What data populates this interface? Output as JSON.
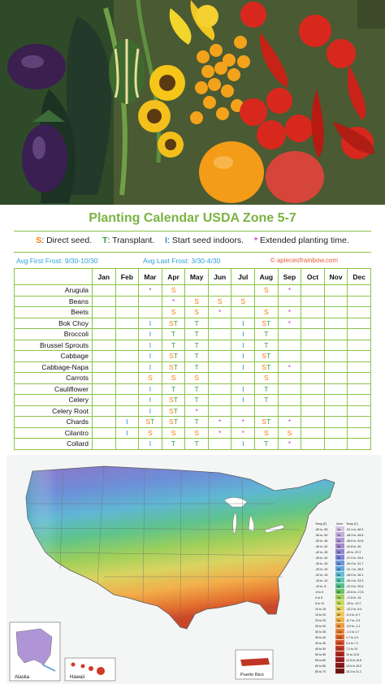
{
  "calendar": {
    "title": "Planting Calendar USDA Zone 5-7",
    "legend": [
      {
        "key": "S",
        "text": ": Direct seed.",
        "cls": "kS"
      },
      {
        "key": "T",
        "text": ": Transplant.",
        "cls": "kT"
      },
      {
        "key": "I",
        "text": ": Start seed indoors.",
        "cls": "kI"
      },
      {
        "key": "*",
        "text": " Extended planting time.",
        "cls": "kP"
      }
    ],
    "first_frost": "Avg First Frost: 9/30-10/30",
    "last_frost": "Avg Last Frost: 3/30-4/30",
    "credit": "© apieceofrainbow.com",
    "months": [
      "Jan",
      "Feb",
      "Mar",
      "Apr",
      "May",
      "Jun",
      "Jul",
      "Aug",
      "Sep",
      "Oct",
      "Nov",
      "Dec"
    ],
    "rows": [
      {
        "crop": "Arugula",
        "cells": [
          "",
          "",
          "*",
          "S",
          "",
          "",
          "",
          "S",
          "*",
          "",
          "",
          ""
        ]
      },
      {
        "crop": "Beans",
        "cells": [
          "",
          "",
          "",
          "*",
          "S",
          "S",
          "S",
          "",
          "",
          "",
          "",
          ""
        ]
      },
      {
        "crop": "Beets",
        "cells": [
          "",
          "",
          "",
          "S",
          "S",
          "*",
          "",
          "S",
          "*",
          "",
          "",
          ""
        ]
      },
      {
        "crop": "Bok Choy",
        "cells": [
          "",
          "",
          "I",
          "ST",
          "T",
          "",
          "I",
          "ST",
          "*",
          "",
          "",
          ""
        ]
      },
      {
        "crop": "Broccoli",
        "cells": [
          "",
          "",
          "I",
          "T",
          "T",
          "",
          "I",
          "T",
          "",
          "",
          "",
          ""
        ]
      },
      {
        "crop": "Brussel Sprouts",
        "cells": [
          "",
          "",
          "I",
          "T",
          "T",
          "",
          "I",
          "T",
          "",
          "",
          "",
          ""
        ]
      },
      {
        "crop": "Cabbage",
        "cells": [
          "",
          "",
          "I",
          "ST",
          "T",
          "",
          "I",
          "ST",
          "",
          "",
          "",
          ""
        ]
      },
      {
        "crop": "Cabbage-Napa",
        "cells": [
          "",
          "",
          "I",
          "ST",
          "T",
          "",
          "I",
          "ST",
          "*",
          "",
          "",
          ""
        ]
      },
      {
        "crop": "Carrots",
        "cells": [
          "",
          "",
          "S",
          "S",
          "S",
          "",
          "",
          "S",
          "",
          "",
          "",
          ""
        ]
      },
      {
        "crop": "Cauliflower",
        "cells": [
          "",
          "",
          "I",
          "T",
          "T",
          "",
          "I",
          "T",
          "",
          "",
          "",
          ""
        ]
      },
      {
        "crop": "Celery",
        "cells": [
          "",
          "",
          "I",
          "ST",
          "T",
          "",
          "I",
          "T",
          "",
          "",
          "",
          ""
        ]
      },
      {
        "crop": "Celery Root",
        "cells": [
          "",
          "",
          "I",
          "ST",
          "*",
          "",
          "",
          "",
          "",
          "",
          "",
          ""
        ]
      },
      {
        "crop": "Chards",
        "cells": [
          "",
          "I",
          "ST",
          "ST",
          "T",
          "*",
          "*",
          "ST",
          "*",
          "",
          "",
          ""
        ]
      },
      {
        "crop": "Cilantro",
        "cells": [
          "",
          "I",
          "S",
          "S",
          "S",
          "*",
          "*",
          "S",
          "S",
          "",
          "",
          ""
        ]
      },
      {
        "crop": "Collard",
        "cells": [
          "",
          "",
          "I",
          "T",
          "T",
          "",
          "I",
          "T",
          "*",
          "",
          "",
          ""
        ]
      }
    ]
  },
  "map": {
    "alaska_label": "Alaska",
    "hawaii_label": "Hawaii",
    "puerto_rico_label": "Puerto Rico",
    "legend_headers": [
      "Temp (F)",
      "Zone",
      "Temp (C)"
    ],
    "legend_rows": [
      [
        "-60 to -55",
        "1a",
        "-51.1 to -48.3"
      ],
      [
        "-55 to -50",
        "1b",
        "-48.3 to -45.6"
      ],
      [
        "-50 to -45",
        "2a",
        "-45.6 to -42.8"
      ],
      [
        "-45 to -40",
        "2b",
        "-42.8 to -40"
      ],
      [
        "-40 to -35",
        "3a",
        "-40 to -37.2"
      ],
      [
        "-35 to -30",
        "3b",
        "-37.2 to -34.4"
      ],
      [
        "-30 to -25",
        "4a",
        "-34.4 to -31.7"
      ],
      [
        "-25 to -20",
        "4b",
        "-31.7 to -28.9"
      ],
      [
        "-20 to -15",
        "5a",
        "-28.9 to -26.1"
      ],
      [
        "-15 to -10",
        "5b",
        "-26.1 to -23.3"
      ],
      [
        "-10 to -5",
        "6a",
        "-23.3 to -20.6"
      ],
      [
        "-5 to 0",
        "6b",
        "-20.6 to -17.8"
      ],
      [
        "0 to 5",
        "7a",
        "-17.8 to -15"
      ],
      [
        "5 to 10",
        "7b",
        "-15 to -12.2"
      ],
      [
        "10 to 15",
        "8a",
        "-12.2 to -9.4"
      ],
      [
        "15 to 20",
        "8b",
        "-9.4 to -6.7"
      ],
      [
        "20 to 25",
        "9a",
        "-6.7 to -3.9"
      ],
      [
        "25 to 30",
        "9b",
        "-3.9 to -1.1"
      ],
      [
        "30 to 35",
        "10a",
        "-1.1 to 1.7"
      ],
      [
        "35 to 40",
        "10b",
        "1.7 to 4.4"
      ],
      [
        "40 to 45",
        "11a",
        "4.4 to 7.2"
      ],
      [
        "45 to 50",
        "11b",
        "7.2 to 10"
      ],
      [
        "50 to 55",
        "12a",
        "10 to 12.8"
      ],
      [
        "55 to 60",
        "12b",
        "12.8 to 15.6"
      ],
      [
        "60 to 65",
        "13a",
        "15.6 to 18.3"
      ],
      [
        "65 to 70",
        "13b",
        "18.3 to 21.1"
      ]
    ],
    "zone_colors": [
      "#d6c6e6",
      "#c4aedc",
      "#b29ad2",
      "#a48ccd",
      "#8f87d2",
      "#7d86d9",
      "#6f96dd",
      "#5fa8dc",
      "#63bfd4",
      "#5ec8b4",
      "#57c28a",
      "#6fc466",
      "#9fcf5a",
      "#c3d95a",
      "#dfd562",
      "#efc85d",
      "#f3b44e",
      "#f29b3f",
      "#ec8433",
      "#e36b2e",
      "#d8532b",
      "#c53c27",
      "#b32b23",
      "#a52020",
      "#8f1a1c",
      "#7a1717"
    ]
  }
}
